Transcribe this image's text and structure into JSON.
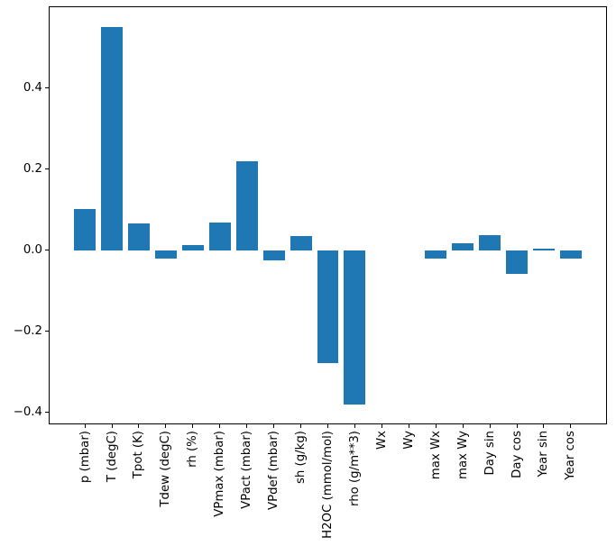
{
  "chart_data": {
    "type": "bar",
    "title": "",
    "xlabel": "",
    "ylabel": "",
    "categories": [
      "p (mbar)",
      "T (degC)",
      "Tpot (K)",
      "Tdew (degC)",
      "rh (%)",
      "VPmax (mbar)",
      "VPact (mbar)",
      "VPdef (mbar)",
      "sh (g/kg)",
      "H2OC (mmol/mol)",
      "rho (g/m**3)",
      "Wx",
      "Wy",
      "max Wx",
      "max Wy",
      "Day sin",
      "Day cos",
      "Year sin",
      "Year cos"
    ],
    "values": [
      0.102,
      0.551,
      0.066,
      -0.021,
      0.013,
      0.069,
      0.22,
      -0.025,
      0.034,
      -0.278,
      -0.381,
      0.0,
      0.0,
      -0.021,
      0.017,
      0.037,
      -0.058,
      0.004,
      -0.02
    ],
    "bar_color": "#1f77b4",
    "axis_color": "#000000",
    "background": "#ffffff",
    "bar_width": 0.8,
    "xlim": [
      -1.34,
      19.34
    ],
    "ylim": [
      -0.43,
      0.602
    ],
    "yticks": [
      {
        "value": 0.4,
        "label": "0.4"
      },
      {
        "value": 0.2,
        "label": "0.2"
      },
      {
        "value": 0.0,
        "label": "0.0"
      },
      {
        "value": -0.2,
        "label": "−0.2"
      },
      {
        "value": -0.4,
        "label": "−0.4"
      }
    ],
    "grid": false,
    "legend": "none"
  }
}
